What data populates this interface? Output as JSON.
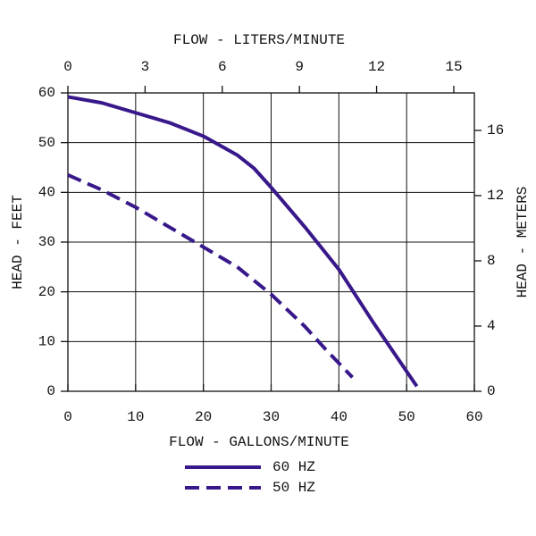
{
  "chart_data": {
    "type": "line",
    "xlabel": "FLOW - GALLONS/MINUTE",
    "x2label": "FLOW - LITERS/MINUTE",
    "ylabel": "HEAD - FEET",
    "y2label": "HEAD - METERS",
    "xlim": [
      0,
      60
    ],
    "xticks": [
      0,
      10,
      20,
      30,
      40,
      50,
      60
    ],
    "x2lim": [
      0,
      15.8
    ],
    "x2ticks": [
      0,
      3,
      6,
      9,
      12,
      15
    ],
    "ylim": [
      0,
      60
    ],
    "yticks": [
      0,
      10,
      20,
      30,
      40,
      50,
      60
    ],
    "y2lim": [
      0,
      18.3
    ],
    "y2ticks": [
      0,
      4,
      8,
      12,
      16
    ],
    "grid": true,
    "legend": "bottom",
    "series": [
      {
        "name": "60 HZ",
        "color": "#38188a",
        "dash": false,
        "x": [
          0,
          5,
          10,
          15,
          20,
          25,
          27.5,
          30,
          35,
          40,
          45,
          48,
          51.5
        ],
        "values": [
          59.2,
          58,
          56,
          54,
          51.3,
          47.5,
          44.8,
          41,
          33,
          24.5,
          14,
          8,
          1
        ]
      },
      {
        "name": "50 HZ",
        "color": "#38188a",
        "dash": true,
        "x": [
          0,
          5,
          10,
          15,
          20,
          25,
          30,
          35,
          38,
          42
        ],
        "values": [
          43.5,
          40.5,
          37,
          33,
          29,
          25,
          19.5,
          13,
          8.5,
          2.8
        ]
      }
    ]
  }
}
